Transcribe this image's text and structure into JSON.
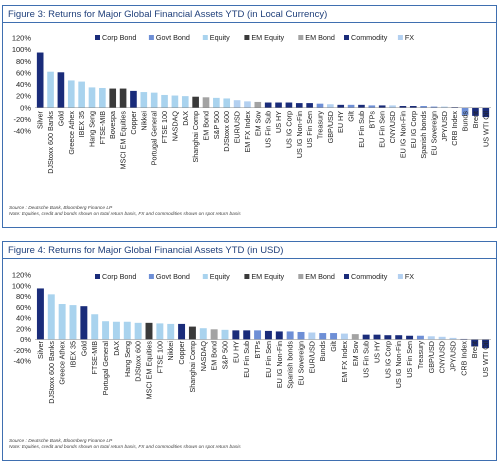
{
  "figures": [
    {
      "title": "Figure 3: Returns for Major Global Financial Assets YTD (in Local Currency)",
      "source_lines": [
        "Source : Deutsche Bank, Bloomberg Finance LP",
        "Note: Equities, credit and bonds shown on total return basis, FX and commodities shown on spot return basis"
      ]
    },
    {
      "title": "Figure 4: Returns for Major Global Financial Assets YTD (in USD)",
      "source_lines": [
        "Source : Deutsche Bank, Bloomberg Finance LP",
        "Note: Equities, credit and bonds shown on total return basis, FX and commodities shown on spot return basis"
      ]
    }
  ],
  "colors": {
    "Corp Bond": "#1a2c7a",
    "Govt Bond": "#6e8fd6",
    "Equity": "#a9d3ee",
    "EM Equity": "#3a3a3a",
    "EM Bond": "#a3a3a3",
    "Commodity": "#1a2c7a",
    "FX": "#b3d0f0"
  },
  "chart_data": [
    {
      "type": "bar",
      "title": "Figure 3: Returns for Major Global Financial Assets YTD (in Local Currency)",
      "ylim": [
        -40,
        120
      ],
      "yticks": [
        -40,
        -20,
        0,
        20,
        40,
        60,
        80,
        100,
        120
      ],
      "ytick_labels": [
        "-40%",
        "-20%",
        "0%",
        "20%",
        "40%",
        "60%",
        "80%",
        "100%",
        "120%"
      ],
      "grid": false,
      "legend": [
        "Corp Bond",
        "Govt Bond",
        "Equity",
        "EM Equity",
        "EM Bond",
        "Commodity",
        "FX"
      ],
      "legend_position": "top-right",
      "categories": [
        "Silver",
        "DJStoxx 600 Banks",
        "Gold",
        "Greece Athex",
        "IBEX 35",
        "Hang Seng",
        "FTSE-MIB",
        "Bovespa",
        "MSCI EM Equities",
        "Copper",
        "Nikkei",
        "Portugal General",
        "FTSE 100",
        "NASDAQ",
        "DAX",
        "Shanghai Comp",
        "EM Bond",
        "S&P 500",
        "DJStoxx 600",
        "EUR/USD",
        "EM FX Index",
        "EM Sov",
        "US Fin Sub",
        "US HY",
        "US IG Corp",
        "US IG Non-Fin",
        "US Fin Sen",
        "Treasury",
        "GBP/USD",
        "EU HY",
        "Gilt",
        "EU Fin Sub",
        "BTPs",
        "EU Fin Sen",
        "CNY/USD",
        "EU IG Non-Fin",
        "EU IG Corp",
        "Spanish bonds",
        "EU Sovereign",
        "JPY/USD",
        "CRB Index",
        "Bunds",
        "Brent",
        "US WTI Oil"
      ],
      "classes": [
        "Commodity",
        "Equity",
        "Commodity",
        "Equity",
        "Equity",
        "Equity",
        "Equity",
        "EM Equity",
        "EM Equity",
        "Commodity",
        "Equity",
        "Equity",
        "Equity",
        "Equity",
        "Equity",
        "EM Equity",
        "EM Bond",
        "Equity",
        "Equity",
        "FX",
        "FX",
        "EM Bond",
        "Corp Bond",
        "Corp Bond",
        "Corp Bond",
        "Corp Bond",
        "Corp Bond",
        "Govt Bond",
        "FX",
        "Corp Bond",
        "Govt Bond",
        "Corp Bond",
        "Govt Bond",
        "Corp Bond",
        "FX",
        "Corp Bond",
        "Corp Bond",
        "Govt Bond",
        "Govt Bond",
        "FX",
        "Commodity",
        "Govt Bond",
        "Commodity",
        "Commodity"
      ],
      "values": [
        95,
        62,
        61,
        47,
        45,
        35,
        34,
        33,
        33,
        29,
        27,
        26,
        22,
        21,
        20,
        19,
        18,
        17,
        16,
        13,
        11,
        10,
        9,
        9,
        9,
        8,
        8,
        7,
        6,
        5,
        5,
        5,
        4,
        4,
        4,
        3,
        3,
        3,
        2,
        2,
        1,
        -13,
        -14,
        -16
      ]
    },
    {
      "type": "bar",
      "title": "Figure 4: Returns for Major Global Financial Assets YTD (in USD)",
      "ylim": [
        -40,
        120
      ],
      "yticks": [
        -40,
        -20,
        0,
        20,
        40,
        60,
        80,
        100,
        120
      ],
      "ytick_labels": [
        "-40%",
        "-20%",
        "0%",
        "20%",
        "40%",
        "60%",
        "80%",
        "100%",
        "120%"
      ],
      "grid": false,
      "legend": [
        "Corp Bond",
        "Govt Bond",
        "Equity",
        "EM Equity",
        "EM Bond",
        "Commodity",
        "FX"
      ],
      "legend_position": "top-right",
      "categories": [
        "Silver",
        "DJStoxx 600 Banks",
        "Greece Athex",
        "IBEX 35",
        "Gold",
        "FTSE-MIB",
        "Portugal General",
        "DAX",
        "Hang Seng",
        "DJStoxx 600",
        "MSCI EM Equities",
        "FTSE 100",
        "Nikkei",
        "Copper",
        "Shanghai Comp",
        "NASDAQ",
        "EM Bond",
        "S&P 500",
        "EU HY",
        "EU Fin Sub",
        "BTPs",
        "EU Fin Sen",
        "EU IG Non-Fin",
        "Spanish bonds",
        "EU Sovereign",
        "EUR/USD",
        "Bunds",
        "Gilt",
        "EM FX Index",
        "EM Sov",
        "US Fin Sub",
        "US HY",
        "US IG Corp",
        "US IG Non-Fin",
        "US Fin Sen",
        "Treasury",
        "GBP/USD",
        "CNY/USD",
        "JPY/USD",
        "CRB Index",
        "Brent",
        "US WTI Oil"
      ],
      "classes": [
        "Commodity",
        "Equity",
        "Equity",
        "Equity",
        "Commodity",
        "Equity",
        "Equity",
        "Equity",
        "Equity",
        "Equity",
        "EM Equity",
        "Equity",
        "Equity",
        "Commodity",
        "EM Equity",
        "Equity",
        "EM Bond",
        "Equity",
        "Corp Bond",
        "Corp Bond",
        "Govt Bond",
        "Corp Bond",
        "Corp Bond",
        "Govt Bond",
        "Govt Bond",
        "FX",
        "Govt Bond",
        "Govt Bond",
        "FX",
        "EM Bond",
        "Corp Bond",
        "Corp Bond",
        "Corp Bond",
        "Corp Bond",
        "Corp Bond",
        "Govt Bond",
        "FX",
        "FX",
        "FX",
        "Commodity",
        "Commodity",
        "Commodity"
      ],
      "values": [
        95,
        84,
        66,
        64,
        62,
        47,
        34,
        33,
        33,
        31,
        31,
        30,
        29,
        29,
        24,
        21,
        19,
        18,
        17,
        17,
        17,
        16,
        15,
        15,
        14,
        13,
        12,
        12,
        11,
        10,
        9,
        9,
        8,
        8,
        7,
        7,
        6,
        5,
        3,
        1,
        -13,
        -16
      ]
    }
  ]
}
